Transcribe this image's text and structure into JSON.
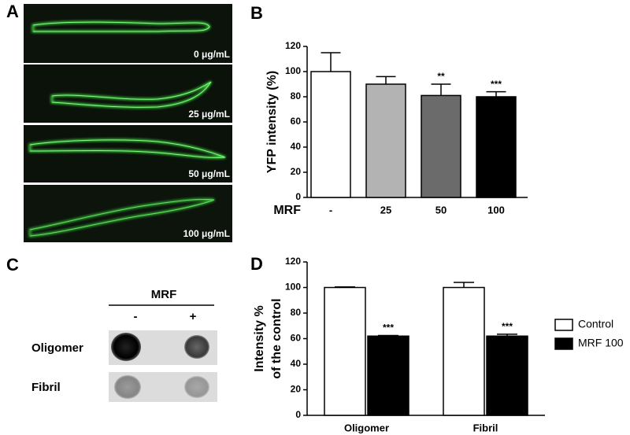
{
  "panel_a": {
    "label": "A",
    "images": [
      "0 μg/mL",
      "25 μg/mL",
      "50 μg/mL",
      "100 μg/mL"
    ]
  },
  "panel_c": {
    "label": "C",
    "header": "MRF",
    "columns": [
      "-",
      "+"
    ],
    "rows": [
      "Oligomer",
      "Fibril"
    ]
  },
  "chart_data": [
    {
      "type": "bar",
      "panel_label": "B",
      "ylabel": "YFP intensity (%)",
      "xlabel": "MRF",
      "categories": [
        "-",
        "25",
        "50",
        "100"
      ],
      "values": [
        100,
        90,
        81,
        80
      ],
      "errors": [
        15,
        6,
        9,
        4
      ],
      "colors": [
        "#ffffff",
        "#b3b3b3",
        "#6b6b6b",
        "#000000"
      ],
      "significance": [
        null,
        null,
        "**",
        "***"
      ],
      "ylim": [
        0,
        120
      ],
      "yticks": [
        0,
        20,
        40,
        60,
        80,
        100,
        120
      ]
    },
    {
      "type": "grouped_bar",
      "panel_label": "D",
      "ylabel": [
        "Intensity %",
        "of the control"
      ],
      "categories": [
        "Oligomer",
        "Fibril"
      ],
      "series": [
        {
          "name": "Control",
          "color": "#ffffff",
          "values": [
            100,
            100
          ],
          "errors": [
            0.5,
            4
          ],
          "significance": [
            null,
            null
          ]
        },
        {
          "name": "MRF 100",
          "color": "#000000",
          "values": [
            62,
            62
          ],
          "errors": [
            0.5,
            1.5
          ],
          "significance": [
            "***",
            "***"
          ]
        }
      ],
      "legend": "right",
      "ylim": [
        0,
        120
      ],
      "yticks": [
        0,
        20,
        40,
        60,
        80,
        100,
        120
      ]
    }
  ]
}
